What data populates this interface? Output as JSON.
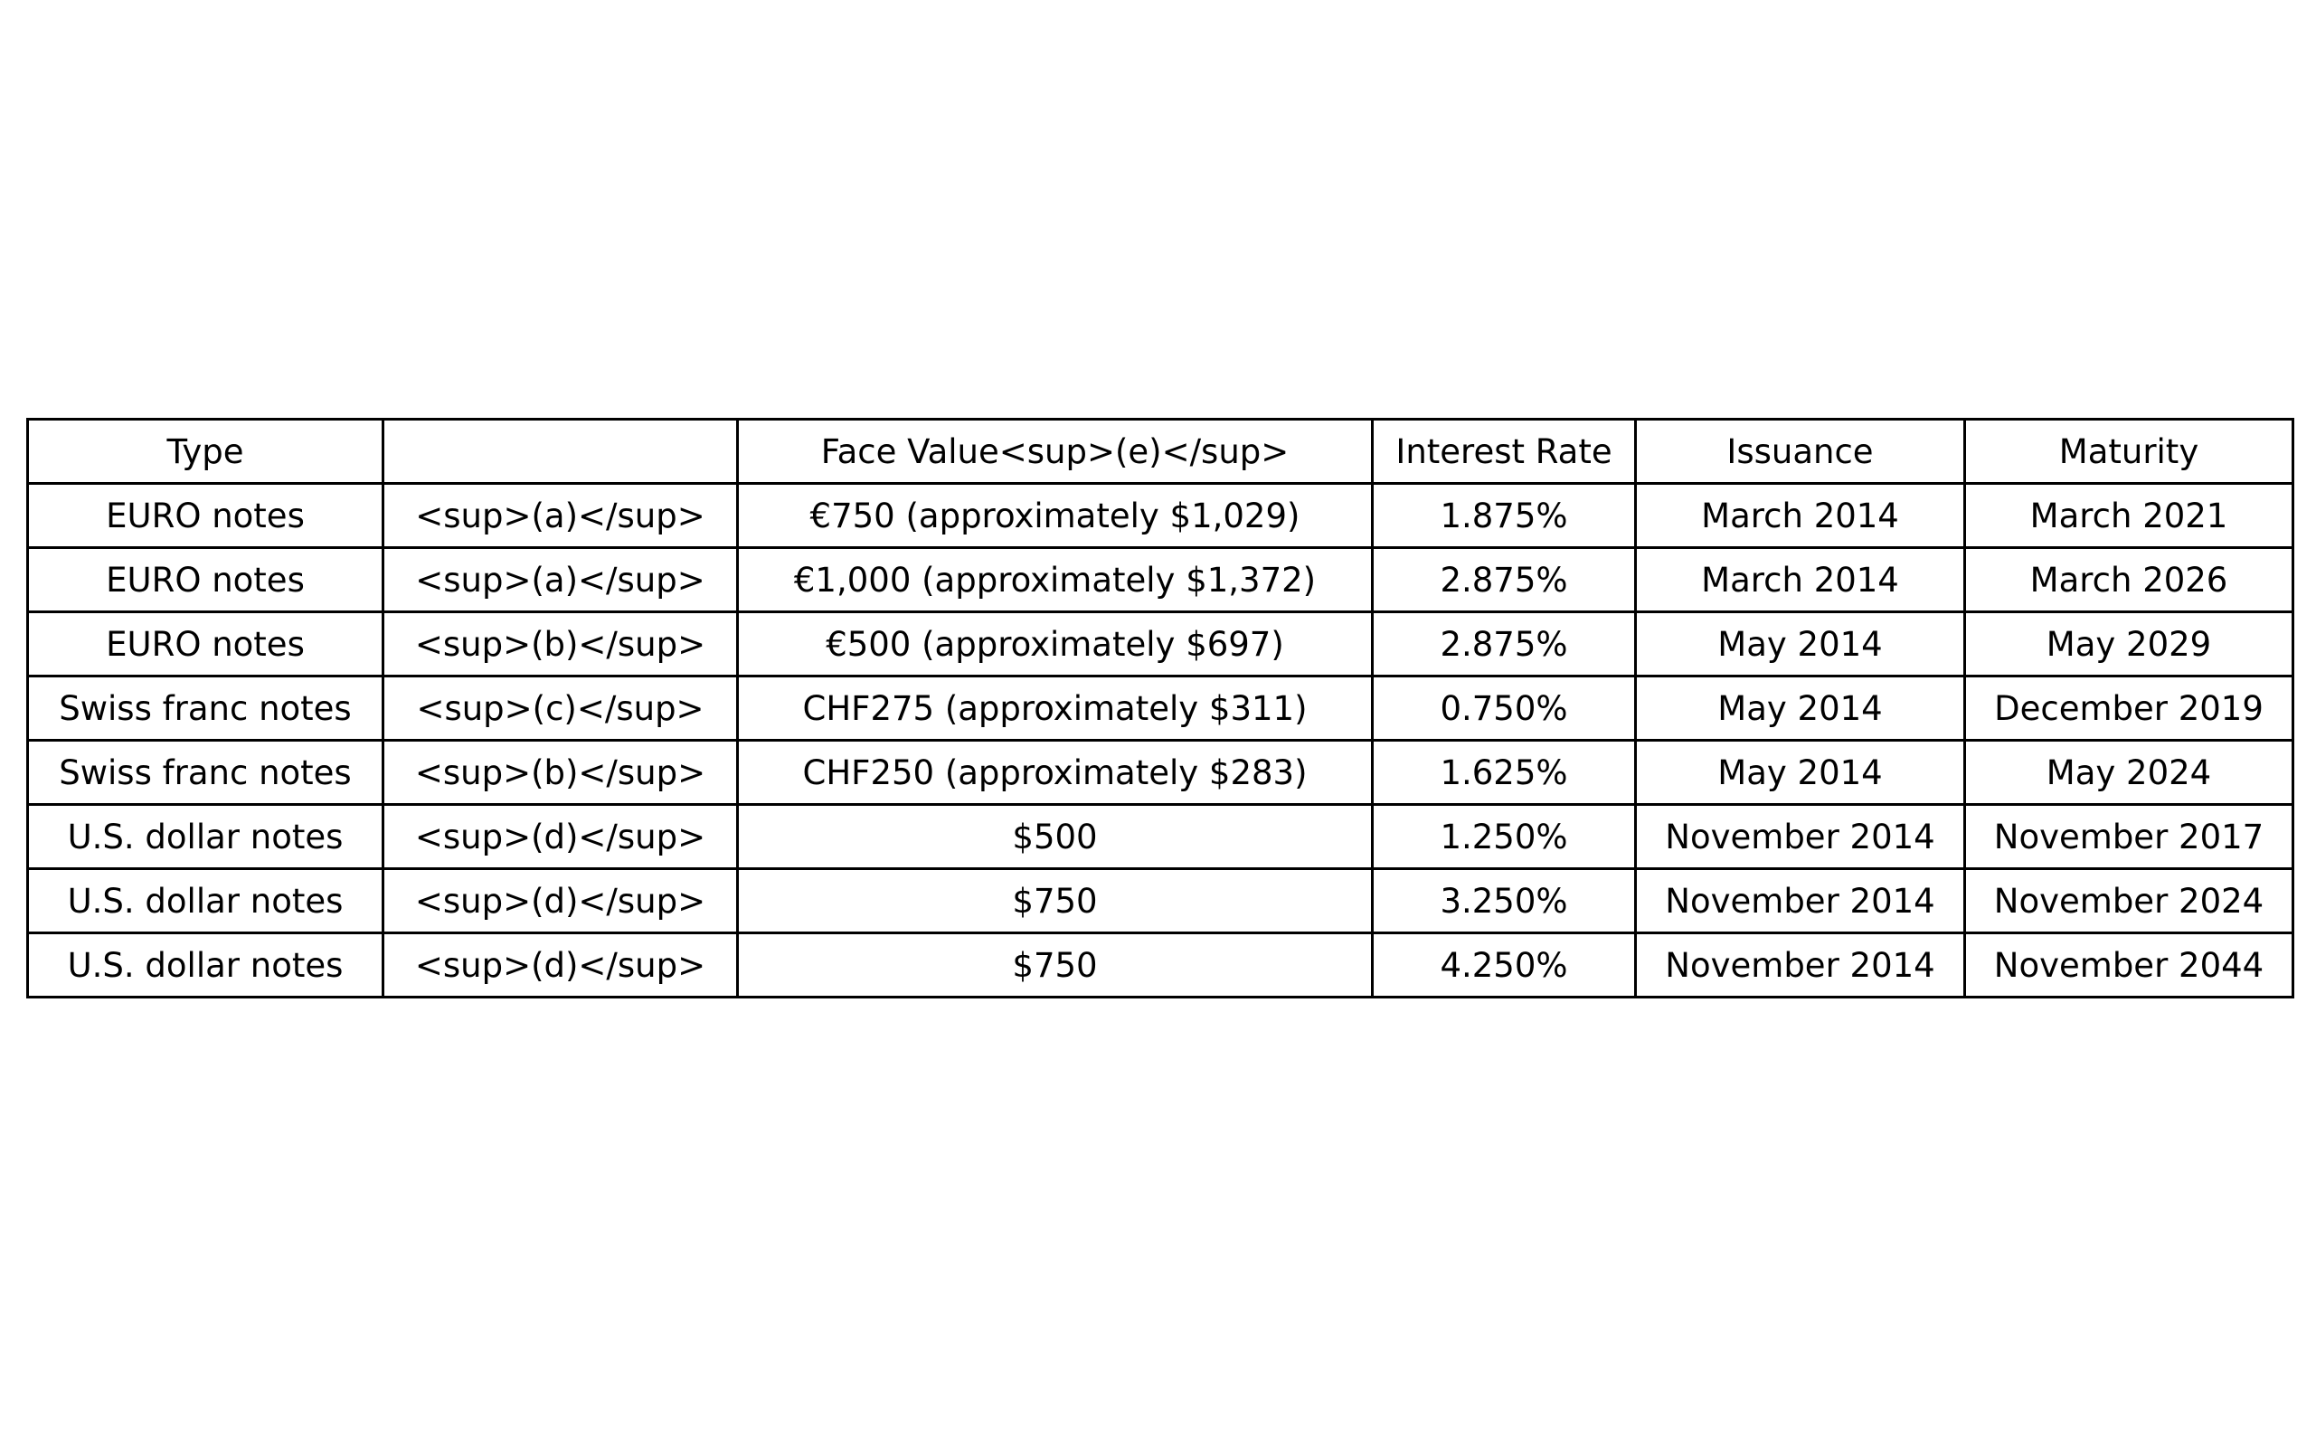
{
  "table": {
    "headers": [
      "Type",
      "",
      "Face Value<sup>(e)</sup>",
      "Interest Rate",
      "Issuance",
      "Maturity"
    ],
    "rows": [
      [
        "EURO notes",
        "<sup>(a)</sup>",
        "€750 (approximately $1,029)",
        "1.875%",
        "March 2014",
        "March 2021"
      ],
      [
        "EURO notes",
        "<sup>(a)</sup>",
        "€1,000 (approximately $1,372)",
        "2.875%",
        "March 2014",
        "March 2026"
      ],
      [
        "EURO notes",
        "<sup>(b)</sup>",
        "€500 (approximately $697)",
        "2.875%",
        "May 2014",
        "May 2029"
      ],
      [
        "Swiss franc notes",
        "<sup>(c)</sup>",
        "CHF275 (approximately $311)",
        "0.750%",
        "May 2014",
        "December 2019"
      ],
      [
        "Swiss franc notes",
        "<sup>(b)</sup>",
        "CHF250 (approximately $283)",
        "1.625%",
        "May 2014",
        "May 2024"
      ],
      [
        "U.S. dollar notes",
        "<sup>(d)</sup>",
        "$500",
        "1.250%",
        "November 2014",
        "November 2017"
      ],
      [
        "U.S. dollar notes",
        "<sup>(d)</sup>",
        "$750",
        "3.250%",
        "November 2014",
        "November 2024"
      ],
      [
        "U.S. dollar notes",
        "<sup>(d)</sup>",
        "$750",
        "4.250%",
        "November 2014",
        "November 2044"
      ]
    ]
  }
}
